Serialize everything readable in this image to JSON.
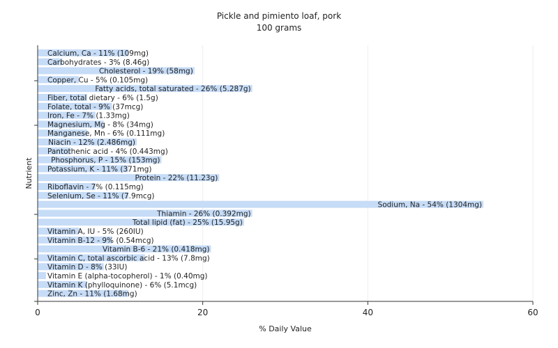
{
  "chart_data": {
    "type": "bar",
    "orientation": "horizontal",
    "title": "Pickle and pimiento loaf, pork",
    "subtitle": "100 grams",
    "xlabel": "% Daily Value",
    "ylabel": "Nutrient",
    "xlim": [
      0,
      60
    ],
    "xticks": [
      0,
      20,
      40,
      60
    ],
    "grid": true,
    "bar_color": "#c6dcf7",
    "grid_color": "#eeeeee",
    "bars": [
      {
        "value": 11,
        "label": "Calcium, Ca - 11% (109mg)"
      },
      {
        "value": 3,
        "label": "Carbohydrates - 3% (8.46g)"
      },
      {
        "value": 19,
        "label": "Cholesterol - 19% (58mg)"
      },
      {
        "value": 5,
        "label": "Copper, Cu - 5% (0.105mg)"
      },
      {
        "value": 26,
        "label": "Fatty acids, total saturated - 26% (5.287g)"
      },
      {
        "value": 6,
        "label": "Fiber, total dietary - 6% (1.5g)"
      },
      {
        "value": 9,
        "label": "Folate, total - 9% (37mcg)"
      },
      {
        "value": 7,
        "label": "Iron, Fe - 7% (1.33mg)"
      },
      {
        "value": 8,
        "label": "Magnesium, Mg - 8% (34mg)"
      },
      {
        "value": 6,
        "label": "Manganese, Mn - 6% (0.111mg)"
      },
      {
        "value": 12,
        "label": "Niacin - 12% (2.486mg)"
      },
      {
        "value": 4,
        "label": "Pantothenic acid - 4% (0.443mg)"
      },
      {
        "value": 15,
        "label": "Phosphorus, P - 15% (153mg)"
      },
      {
        "value": 11,
        "label": "Potassium, K - 11% (371mg)"
      },
      {
        "value": 22,
        "label": "Protein - 22% (11.23g)"
      },
      {
        "value": 7,
        "label": "Riboflavin - 7% (0.115mg)"
      },
      {
        "value": 11,
        "label": "Selenium, Se - 11% (7.9mcg)"
      },
      {
        "value": 54,
        "label": "Sodium, Na - 54% (1304mg)"
      },
      {
        "value": 26,
        "label": "Thiamin - 26% (0.392mg)"
      },
      {
        "value": 25,
        "label": "Total lipid (fat) - 25% (15.95g)"
      },
      {
        "value": 5,
        "label": "Vitamin A, IU - 5% (260IU)"
      },
      {
        "value": 9,
        "label": "Vitamin B-12 - 9% (0.54mcg)"
      },
      {
        "value": 21,
        "label": "Vitamin B-6 - 21% (0.418mg)"
      },
      {
        "value": 13,
        "label": "Vitamin C, total ascorbic acid - 13% (7.8mg)"
      },
      {
        "value": 8,
        "label": "Vitamin D - 8% (33IU)"
      },
      {
        "value": 1,
        "label": "Vitamin E (alpha-tocopherol) - 1% (0.40mg)"
      },
      {
        "value": 6,
        "label": "Vitamin K (phylloquinone) - 6% (5.1mcg)"
      },
      {
        "value": 11,
        "label": "Zinc, Zn - 11% (1.68mg)"
      }
    ]
  }
}
